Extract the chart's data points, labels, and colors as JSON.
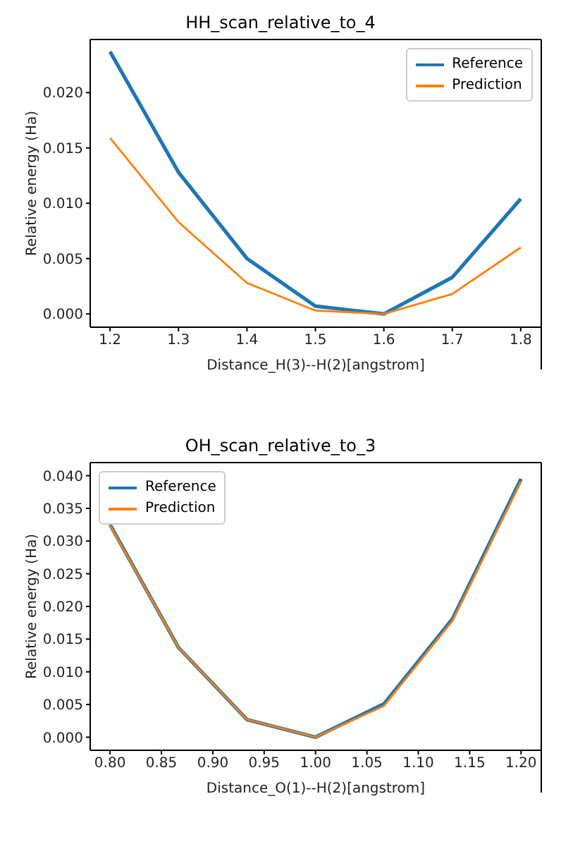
{
  "chart_data": [
    {
      "type": "line",
      "title": "HH_scan_relative_to_4",
      "xlabel": "Distance_H(3)--H(2)[angstrom]",
      "ylabel": "Relative energy (Ha)",
      "x": [
        1.2,
        1.3,
        1.4,
        1.5,
        1.6,
        1.7,
        1.8
      ],
      "series": [
        {
          "name": "Reference",
          "color": "#1f77b4",
          "values": [
            0.0237,
            0.0128,
            0.005,
            0.0007,
            0.0,
            0.0033,
            0.0104
          ]
        },
        {
          "name": "Prediction",
          "color": "#ff7f0e",
          "values": [
            0.0159,
            0.0083,
            0.0028,
            0.0003,
            0.0,
            0.0018,
            0.006
          ]
        }
      ],
      "xlim": [
        1.171,
        1.83
      ],
      "xticks": [
        1.2,
        1.3,
        1.4,
        1.5,
        1.6,
        1.7,
        1.8
      ],
      "ylim": [
        -0.0012,
        0.0248
      ],
      "yticks": [
        {
          "value": 0,
          "label": "0.000"
        },
        {
          "value": 0.005,
          "label": "0.005"
        },
        {
          "value": 0.01,
          "label": "0.010"
        },
        {
          "value": 0.015,
          "label": "0.015"
        },
        {
          "value": 0.02,
          "label": "0.020"
        }
      ],
      "grid": false,
      "legend": "top right",
      "marker": "none",
      "line_style": "solid"
    },
    {
      "type": "line",
      "title": "OH_scan_relative_to_3",
      "xlabel": "Distance_O(1)--H(2)[angstrom]",
      "ylabel": "Relative energy (Ha)",
      "x": [
        0.8,
        0.8667,
        0.9333,
        1.0,
        1.0667,
        1.1333,
        1.2
      ],
      "series": [
        {
          "name": "Reference",
          "color": "#1f77b4",
          "values": [
            0.0325,
            0.0137,
            0.0027,
            0.0,
            0.0051,
            0.0181,
            0.0395
          ]
        },
        {
          "name": "Prediction",
          "color": "#ff7f0e",
          "values": [
            0.0324,
            0.0137,
            0.0027,
            0.0,
            0.0048,
            0.0178,
            0.0391
          ]
        }
      ],
      "xlim": [
        0.7807,
        1.2197
      ],
      "xticks": [
        {
          "value": 0.8,
          "label": "0.80"
        },
        {
          "value": 0.85,
          "label": "0.85"
        },
        {
          "value": 0.9,
          "label": "0.90"
        },
        {
          "value": 0.95,
          "label": "0.95"
        },
        {
          "value": 1.0,
          "label": "1.00"
        },
        {
          "value": 1.05,
          "label": "1.05"
        },
        {
          "value": 1.1,
          "label": "1.10"
        },
        {
          "value": 1.15,
          "label": "1.15"
        },
        {
          "value": 1.2,
          "label": "1.20"
        }
      ],
      "ylim": [
        -0.002,
        0.042
      ],
      "yticks": [
        {
          "value": 0,
          "label": "0.000"
        },
        {
          "value": 0.005,
          "label": "0.005"
        },
        {
          "value": 0.01,
          "label": "0.010"
        },
        {
          "value": 0.015,
          "label": "0.015"
        },
        {
          "value": 0.02,
          "label": "0.020"
        },
        {
          "value": 0.025,
          "label": "0.025"
        },
        {
          "value": 0.03,
          "label": "0.030"
        },
        {
          "value": 0.035,
          "label": "0.035"
        },
        {
          "value": 0.04,
          "label": "0.040"
        }
      ],
      "grid": false,
      "legend": "top left",
      "marker": "none",
      "line_style": "solid"
    }
  ]
}
